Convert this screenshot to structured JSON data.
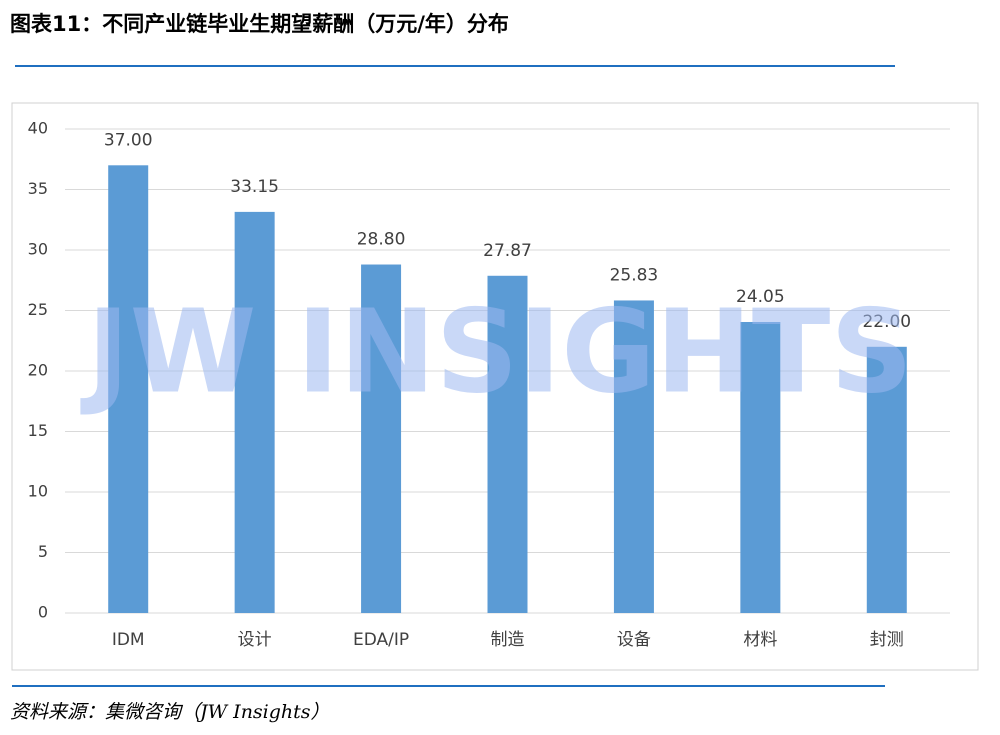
{
  "header": {
    "title": "图表11：不同产业链毕业生期望薪酬（万元/年）分布"
  },
  "chart_data": {
    "type": "bar",
    "watermark": "JW INSIGHTS",
    "categories": [
      "IDM",
      "设计",
      "EDA/IP",
      "制造",
      "设备",
      "材料",
      "封测"
    ],
    "values": [
      37.0,
      33.15,
      28.8,
      27.87,
      25.83,
      24.05,
      22.0
    ],
    "value_labels": [
      "37.00",
      "33.15",
      "28.80",
      "27.87",
      "25.83",
      "24.05",
      "22.00"
    ],
    "color": "#5b9bd5",
    "ylim": [
      0,
      40
    ],
    "yticks": [
      0,
      5,
      10,
      15,
      20,
      25,
      30,
      35,
      40
    ],
    "grid": true
  },
  "footer": {
    "source": "资料来源：集微咨询（JW Insights）"
  }
}
